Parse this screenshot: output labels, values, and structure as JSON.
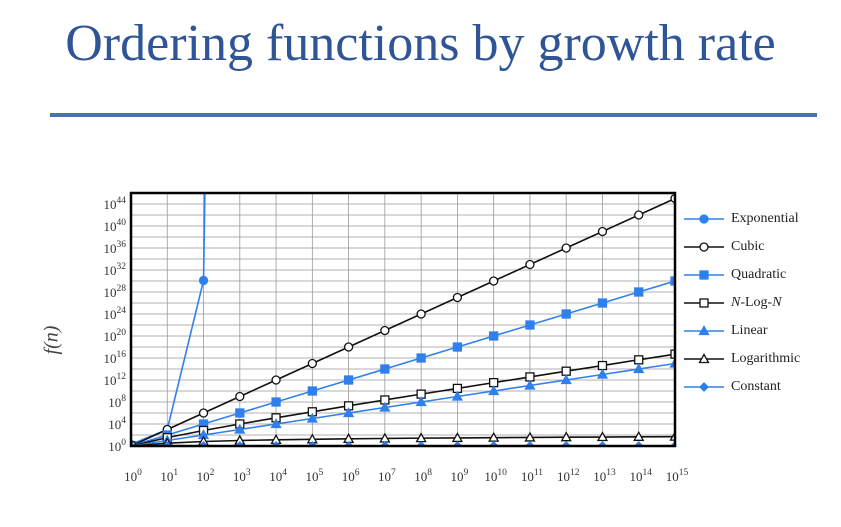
{
  "slide": {
    "title": "Ordering functions by growth rate"
  },
  "colors": {
    "title": "#2f5597",
    "blue": "#2f80ed",
    "black": "#111111"
  },
  "chart_data": {
    "type": "line",
    "ylabel": "f(n)",
    "xscale": "log10",
    "yscale": "log10",
    "grid": true,
    "legend_position": "right",
    "x_ticks": [
      "10^0",
      "10^1",
      "10^2",
      "10^3",
      "10^4",
      "10^5",
      "10^6",
      "10^7",
      "10^8",
      "10^9",
      "10^10",
      "10^11",
      "10^12",
      "10^13",
      "10^14",
      "10^15"
    ],
    "y_ticks": [
      "10^0",
      "10^4",
      "10^8",
      "10^12",
      "10^16",
      "10^20",
      "10^24",
      "10^28",
      "10^32",
      "10^36",
      "10^40",
      "10^44"
    ],
    "x_exponent_range": [
      0,
      15
    ],
    "y_exponent_range": [
      0,
      46
    ],
    "series": [
      {
        "name": "Exponential",
        "color": "#2f80ed",
        "marker": "circle-filled",
        "points": [
          [
            0,
            0.3
          ],
          [
            1,
            3.0
          ],
          [
            2,
            30.1
          ]
        ],
        "continues_above": true
      },
      {
        "name": "Cubic",
        "color": "#111111",
        "marker": "circle-open",
        "points": [
          [
            0,
            0
          ],
          [
            1,
            3
          ],
          [
            2,
            6
          ],
          [
            3,
            9
          ],
          [
            4,
            12
          ],
          [
            5,
            15
          ],
          [
            6,
            18
          ],
          [
            7,
            21
          ],
          [
            8,
            24
          ],
          [
            9,
            27
          ],
          [
            10,
            30
          ],
          [
            11,
            33
          ],
          [
            12,
            36
          ],
          [
            13,
            39
          ],
          [
            14,
            42
          ],
          [
            15,
            45
          ]
        ]
      },
      {
        "name": "Quadratic",
        "color": "#2f80ed",
        "marker": "square-filled",
        "points": [
          [
            0,
            0
          ],
          [
            1,
            2
          ],
          [
            2,
            4
          ],
          [
            3,
            6
          ],
          [
            4,
            8
          ],
          [
            5,
            10
          ],
          [
            6,
            12
          ],
          [
            7,
            14
          ],
          [
            8,
            16
          ],
          [
            9,
            18
          ],
          [
            10,
            20
          ],
          [
            11,
            22
          ],
          [
            12,
            24
          ],
          [
            13,
            26
          ],
          [
            14,
            28
          ],
          [
            15,
            30
          ]
        ]
      },
      {
        "name": "N-Log-N",
        "color": "#111111",
        "marker": "square-open",
        "points": [
          [
            0,
            0
          ],
          [
            1,
            1.52
          ],
          [
            2,
            2.82
          ],
          [
            3,
            4.0
          ],
          [
            4,
            5.12
          ],
          [
            5,
            6.22
          ],
          [
            6,
            7.3
          ],
          [
            7,
            8.37
          ],
          [
            8,
            9.43
          ],
          [
            9,
            10.47
          ],
          [
            10,
            11.52
          ],
          [
            11,
            12.56
          ],
          [
            12,
            13.6
          ],
          [
            13,
            14.63
          ],
          [
            14,
            15.67
          ],
          [
            15,
            16.7
          ]
        ]
      },
      {
        "name": "Linear",
        "color": "#2f80ed",
        "marker": "triangle-filled",
        "points": [
          [
            0,
            0
          ],
          [
            1,
            1
          ],
          [
            2,
            2
          ],
          [
            3,
            3
          ],
          [
            4,
            4
          ],
          [
            5,
            5
          ],
          [
            6,
            6
          ],
          [
            7,
            7
          ],
          [
            8,
            8
          ],
          [
            9,
            9
          ],
          [
            10,
            10
          ],
          [
            11,
            11
          ],
          [
            12,
            12
          ],
          [
            13,
            13
          ],
          [
            14,
            14
          ],
          [
            15,
            15
          ]
        ]
      },
      {
        "name": "Logarithmic",
        "color": "#111111",
        "marker": "triangle-open",
        "points": [
          [
            0,
            0
          ],
          [
            1,
            0.52
          ],
          [
            2,
            0.82
          ],
          [
            3,
            1.0
          ],
          [
            4,
            1.12
          ],
          [
            5,
            1.22
          ],
          [
            6,
            1.3
          ],
          [
            7,
            1.37
          ],
          [
            8,
            1.43
          ],
          [
            9,
            1.47
          ],
          [
            10,
            1.52
          ],
          [
            11,
            1.56
          ],
          [
            12,
            1.6
          ],
          [
            13,
            1.63
          ],
          [
            14,
            1.67
          ],
          [
            15,
            1.7
          ]
        ]
      },
      {
        "name": "Constant",
        "color": "#2f80ed",
        "marker": "diamond-filled",
        "points": [
          [
            0,
            0
          ],
          [
            1,
            0
          ],
          [
            2,
            0
          ],
          [
            3,
            0
          ],
          [
            4,
            0
          ],
          [
            5,
            0
          ],
          [
            6,
            0
          ],
          [
            7,
            0
          ],
          [
            8,
            0
          ],
          [
            9,
            0
          ],
          [
            10,
            0
          ],
          [
            11,
            0
          ],
          [
            12,
            0
          ],
          [
            13,
            0
          ],
          [
            14,
            0
          ],
          [
            15,
            0
          ]
        ]
      }
    ]
  },
  "legend": {
    "items": [
      {
        "label": "Exponential",
        "marker": "circle-filled",
        "color": "#2f80ed"
      },
      {
        "label": "Cubic",
        "marker": "circle-open",
        "color": "#111111"
      },
      {
        "label": "Quadratic",
        "marker": "square-filled",
        "color": "#2f80ed"
      },
      {
        "label_parts": [
          "N",
          "-Log-",
          "N"
        ],
        "marker": "square-open",
        "color": "#111111"
      },
      {
        "label": "Linear",
        "marker": "triangle-filled",
        "color": "#2f80ed"
      },
      {
        "label": "Logarithmic",
        "marker": "triangle-open",
        "color": "#111111"
      },
      {
        "label": "Constant",
        "marker": "diamond-filled",
        "color": "#2f80ed"
      }
    ]
  }
}
